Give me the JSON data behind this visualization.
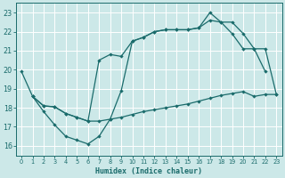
{
  "xlabel": "Humidex (Indice chaleur)",
  "bg_color": "#cce8e8",
  "grid_color": "#ffffff",
  "line_color": "#1a6b6b",
  "xlim": [
    -0.5,
    23.5
  ],
  "ylim": [
    15.5,
    23.5
  ],
  "xticks": [
    0,
    1,
    2,
    3,
    4,
    5,
    6,
    7,
    8,
    9,
    10,
    11,
    12,
    13,
    14,
    15,
    16,
    17,
    18,
    19,
    20,
    21,
    22,
    23
  ],
  "yticks": [
    16,
    17,
    18,
    19,
    20,
    21,
    22,
    23
  ],
  "curve1_x": [
    0,
    1,
    2,
    3,
    4,
    5,
    6,
    7,
    8,
    9,
    10,
    11,
    12,
    13,
    14,
    15,
    16,
    17,
    18,
    19,
    20,
    21,
    22
  ],
  "curve1_y": [
    19.9,
    18.6,
    17.8,
    17.1,
    16.5,
    16.3,
    16.1,
    16.5,
    17.4,
    18.9,
    21.5,
    21.7,
    22.0,
    22.1,
    22.1,
    22.1,
    22.2,
    23.0,
    22.5,
    21.9,
    21.1,
    21.1,
    19.9
  ],
  "curve2_x": [
    1,
    2,
    3,
    4,
    5,
    6,
    7,
    8,
    9,
    10,
    11,
    12,
    13,
    14,
    15,
    16,
    17,
    18,
    19,
    20,
    21,
    22,
    23
  ],
  "curve2_y": [
    18.6,
    18.1,
    18.05,
    17.7,
    17.5,
    17.3,
    17.3,
    17.4,
    17.5,
    17.65,
    17.8,
    17.9,
    18.0,
    18.1,
    18.2,
    18.35,
    18.5,
    18.65,
    18.75,
    18.85,
    18.6,
    18.7,
    18.7
  ],
  "curve3_x": [
    1,
    2,
    3,
    4,
    5,
    6,
    7,
    8,
    9,
    10,
    11,
    12,
    13,
    14,
    15,
    16,
    17,
    18,
    19,
    20,
    21,
    22,
    23
  ],
  "curve3_y": [
    18.6,
    18.1,
    18.05,
    17.7,
    17.5,
    17.3,
    20.5,
    20.8,
    20.7,
    21.5,
    21.7,
    22.0,
    22.1,
    22.1,
    22.1,
    22.2,
    22.6,
    22.5,
    22.5,
    21.9,
    21.1,
    21.1,
    18.7
  ]
}
